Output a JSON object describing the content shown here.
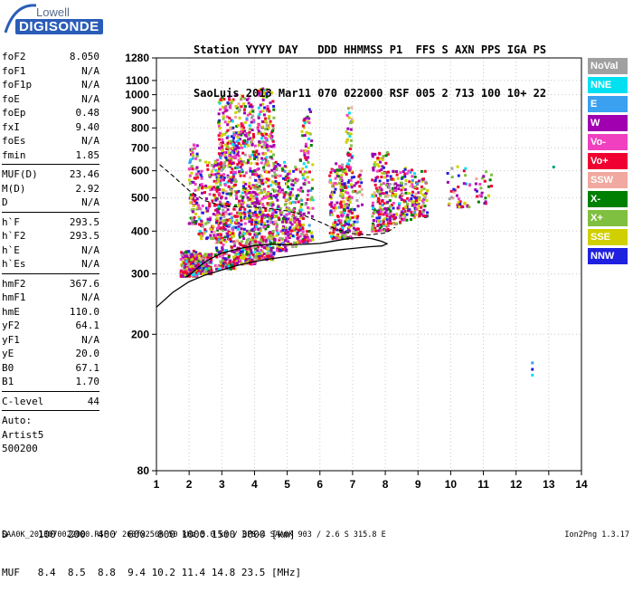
{
  "logo": {
    "top": "Lowell",
    "main": "DIGISONDE"
  },
  "header": {
    "line1": "Station YYYY DAY   DDD HHMMSS P1  FFS S AXN PPS IGA PS",
    "line2": "SaoLuis 2013 Mar11 070 022000 RSF 005 2 713 100 10+ 22"
  },
  "params_group1": [
    {
      "name": "foF2",
      "value": "8.050"
    },
    {
      "name": "foF1",
      "value": "N/A"
    },
    {
      "name": "foF1p",
      "value": "N/A"
    },
    {
      "name": "foE",
      "value": "N/A"
    },
    {
      "name": "foEp",
      "value": "0.48"
    },
    {
      "name": "fxI",
      "value": "9.40"
    },
    {
      "name": "foEs",
      "value": "N/A"
    },
    {
      "name": "fmin",
      "value": "1.85"
    }
  ],
  "params_group2": [
    {
      "name": "MUF(D)",
      "value": "23.46"
    },
    {
      "name": "M(D)",
      "value": "2.92"
    },
    {
      "name": "D",
      "value": "N/A"
    }
  ],
  "params_group3": [
    {
      "name": "h`F",
      "value": "293.5"
    },
    {
      "name": "h`F2",
      "value": "293.5"
    },
    {
      "name": "h`E",
      "value": "N/A"
    },
    {
      "name": "h`Es",
      "value": "N/A"
    }
  ],
  "params_group4": [
    {
      "name": "hmF2",
      "value": "367.6"
    },
    {
      "name": "hmF1",
      "value": "N/A"
    },
    {
      "name": "hmE",
      "value": "110.0"
    },
    {
      "name": "yF2",
      "value": "64.1"
    },
    {
      "name": "yF1",
      "value": "N/A"
    },
    {
      "name": "yE",
      "value": "20.0"
    },
    {
      "name": "B0",
      "value": "67.1"
    },
    {
      "name": "B1",
      "value": "1.70"
    }
  ],
  "params_group5": [
    {
      "name": "C-level",
      "value": "44"
    }
  ],
  "auto": {
    "line1": "Auto:",
    "line2": "Artist5",
    "line3": "500200"
  },
  "legend": [
    {
      "label": "NoVal",
      "color": "#a0a0a0"
    },
    {
      "label": "NNE",
      "color": "#00e0f0"
    },
    {
      "label": "E",
      "color": "#3aa0f0"
    },
    {
      "label": "W",
      "color": "#a000b0"
    },
    {
      "label": "Vo-",
      "color": "#f040c0"
    },
    {
      "label": "Vo+",
      "color": "#f00030"
    },
    {
      "label": "SSW",
      "color": "#f0a8a0"
    },
    {
      "label": "X-",
      "color": "#008000"
    },
    {
      "label": "X+",
      "color": "#80c040"
    },
    {
      "label": "SSE",
      "color": "#d0d000"
    },
    {
      "label": "NNW",
      "color": "#2020e0"
    }
  ],
  "muf_table": {
    "line1": "D     100  200  400  600  800 1000 1500 3000 [km]",
    "line2": "MUF   8.4  8.5  8.8  9.4 10.2 11.4 14.8 23.5 [MHz]"
  },
  "footer": {
    "left": "SAA0K_2013070022000.RSF / 260fx256h 50 kHz 5.0 km / DPS-4 SAA0K 903 / 2.6 S 315.8 E",
    "right": "Ion2Png 1.3.17"
  },
  "chart_data": {
    "type": "scatter",
    "title": "",
    "xlabel": "",
    "ylabel": "",
    "xlim": [
      1,
      14
    ],
    "ylim": [
      80,
      1280
    ],
    "y_scale": "log",
    "x_ticks": [
      1,
      2,
      3,
      4,
      5,
      6,
      7,
      8,
      9,
      10,
      11,
      12,
      13,
      14
    ],
    "y_ticks": [
      80,
      200,
      300,
      400,
      500,
      600,
      700,
      800,
      900,
      1000,
      1100,
      1280
    ],
    "clusters": [
      {
        "x0": 1.75,
        "x1": 2.25,
        "y0": 295,
        "y1": 350,
        "n": 260
      },
      {
        "x0": 2.2,
        "x1": 2.7,
        "y0": 300,
        "y1": 345,
        "n": 160
      },
      {
        "x0": 2.0,
        "x1": 2.3,
        "y0": 420,
        "y1": 720,
        "n": 90
      },
      {
        "x0": 2.3,
        "x1": 3.0,
        "y0": 380,
        "y1": 650,
        "n": 150
      },
      {
        "x0": 2.8,
        "x1": 3.45,
        "y0": 310,
        "y1": 650,
        "n": 320
      },
      {
        "x0": 2.9,
        "x1": 3.5,
        "y0": 650,
        "y1": 1000,
        "n": 140
      },
      {
        "x0": 3.45,
        "x1": 4.05,
        "y0": 320,
        "y1": 720,
        "n": 300
      },
      {
        "x0": 3.5,
        "x1": 4.0,
        "y0": 720,
        "y1": 1000,
        "n": 80
      },
      {
        "x0": 4.0,
        "x1": 4.6,
        "y0": 330,
        "y1": 700,
        "n": 320
      },
      {
        "x0": 4.1,
        "x1": 4.6,
        "y0": 700,
        "y1": 1050,
        "n": 110
      },
      {
        "x0": 4.6,
        "x1": 5.0,
        "y0": 350,
        "y1": 640,
        "n": 150
      },
      {
        "x0": 5.0,
        "x1": 5.3,
        "y0": 360,
        "y1": 620,
        "n": 80
      },
      {
        "x0": 5.3,
        "x1": 5.8,
        "y0": 370,
        "y1": 640,
        "n": 120
      },
      {
        "x0": 5.4,
        "x1": 5.75,
        "y0": 640,
        "y1": 920,
        "n": 40
      },
      {
        "x0": 6.3,
        "x1": 6.7,
        "y0": 380,
        "y1": 640,
        "n": 110
      },
      {
        "x0": 6.6,
        "x1": 7.0,
        "y0": 380,
        "y1": 620,
        "n": 130
      },
      {
        "x0": 6.8,
        "x1": 7.0,
        "y0": 620,
        "y1": 920,
        "n": 35
      },
      {
        "x0": 7.0,
        "x1": 7.3,
        "y0": 390,
        "y1": 600,
        "n": 50
      },
      {
        "x0": 7.6,
        "x1": 8.1,
        "y0": 400,
        "y1": 680,
        "n": 170
      },
      {
        "x0": 8.1,
        "x1": 8.5,
        "y0": 420,
        "y1": 600,
        "n": 80
      },
      {
        "x0": 8.5,
        "x1": 8.9,
        "y0": 430,
        "y1": 620,
        "n": 80
      },
      {
        "x0": 8.9,
        "x1": 9.3,
        "y0": 440,
        "y1": 600,
        "n": 70
      },
      {
        "x0": 9.9,
        "x1": 10.6,
        "y0": 470,
        "y1": 620,
        "n": 40
      },
      {
        "x0": 10.7,
        "x1": 11.3,
        "y0": 480,
        "y1": 600,
        "n": 25
      }
    ],
    "isolated_points": [
      {
        "x": 13.15,
        "y": 615,
        "c": "#00a080"
      },
      {
        "x": 12.5,
        "y": 165,
        "c": "#3aa0f0"
      },
      {
        "x": 12.5,
        "y": 158,
        "c": "#2020e0"
      },
      {
        "x": 12.5,
        "y": 152,
        "c": "#00e0f0"
      }
    ],
    "profile_curve": [
      [
        1.0,
        240
      ],
      [
        1.5,
        265
      ],
      [
        2.0,
        285
      ],
      [
        2.5,
        298
      ],
      [
        3.0,
        308
      ],
      [
        3.5,
        318
      ],
      [
        4.0,
        326
      ],
      [
        4.5,
        332
      ],
      [
        5.0,
        337
      ],
      [
        5.5,
        342
      ],
      [
        6.0,
        347
      ],
      [
        6.5,
        352
      ],
      [
        7.0,
        356
      ],
      [
        7.5,
        360
      ],
      [
        7.9,
        362
      ],
      [
        8.05,
        367.6
      ],
      [
        7.9,
        373
      ],
      [
        7.6,
        380
      ],
      [
        7.3,
        383
      ],
      [
        7.0,
        382
      ],
      [
        6.7,
        378
      ],
      [
        6.3,
        372
      ],
      [
        6.0,
        368
      ],
      [
        5.5,
        366
      ],
      [
        5.0,
        365
      ],
      [
        4.5,
        366
      ],
      [
        4.0,
        363
      ],
      [
        3.5,
        355
      ],
      [
        3.0,
        345
      ],
      [
        2.6,
        330
      ],
      [
        2.3,
        315
      ],
      [
        2.1,
        303
      ],
      [
        1.95,
        295
      ],
      [
        1.88,
        293.5
      ]
    ],
    "trace_curve_dashed": [
      [
        1.1,
        625
      ],
      [
        1.5,
        580
      ],
      [
        2.0,
        525
      ],
      [
        2.5,
        490
      ],
      [
        3.0,
        475
      ],
      [
        3.5,
        470
      ],
      [
        4.0,
        470
      ],
      [
        4.5,
        465
      ],
      [
        5.0,
        458
      ],
      [
        5.5,
        445
      ],
      [
        6.0,
        425
      ],
      [
        6.5,
        405
      ],
      [
        7.0,
        393
      ],
      [
        7.5,
        390
      ],
      [
        8.0,
        395
      ],
      [
        8.3,
        410
      ]
    ]
  }
}
